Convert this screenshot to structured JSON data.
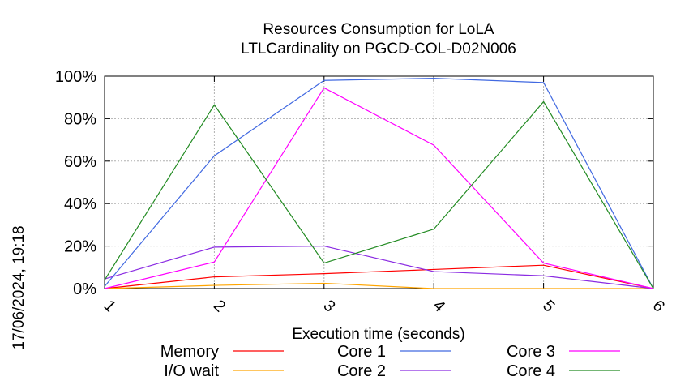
{
  "chart_data": {
    "type": "line",
    "title": "Resources Consumption for LoLA",
    "subtitle": "LTLCardinality on PGCD-COL-D02N006",
    "xlabel": "Execution time (seconds)",
    "ylabel": "",
    "side_label": "17/06/2024, 19:18",
    "x": [
      1,
      2,
      3,
      4,
      5,
      6
    ],
    "x_ticks": [
      "1",
      "2",
      "3",
      "4",
      "5",
      "6"
    ],
    "xlim": [
      1,
      6
    ],
    "ylim": [
      0,
      100
    ],
    "y_ticks": [
      "0%",
      "20%",
      "40%",
      "60%",
      "80%",
      "100%"
    ],
    "y_tick_values": [
      0,
      20,
      40,
      60,
      80,
      100
    ],
    "grid": true,
    "legend_position": "bottom",
    "series": [
      {
        "name": "Memory",
        "color": "#ff0000",
        "values": [
          0,
          5.5,
          7,
          9,
          11,
          0
        ]
      },
      {
        "name": "I/O wait",
        "color": "#ffa500",
        "values": [
          0,
          1.5,
          2.5,
          0,
          0,
          0
        ]
      },
      {
        "name": "Core 1",
        "color": "#4169e1",
        "values": [
          1,
          62.5,
          98,
          99,
          97,
          0
        ]
      },
      {
        "name": "Core 2",
        "color": "#8a2be2",
        "values": [
          4.5,
          19.5,
          20,
          8,
          6,
          0
        ]
      },
      {
        "name": "Core 3",
        "color": "#ff00ff",
        "values": [
          0,
          12.5,
          94.5,
          67.5,
          12,
          0
        ]
      },
      {
        "name": "Core 4",
        "color": "#228b22",
        "values": [
          4,
          86.5,
          12,
          28,
          88,
          0
        ]
      }
    ]
  }
}
